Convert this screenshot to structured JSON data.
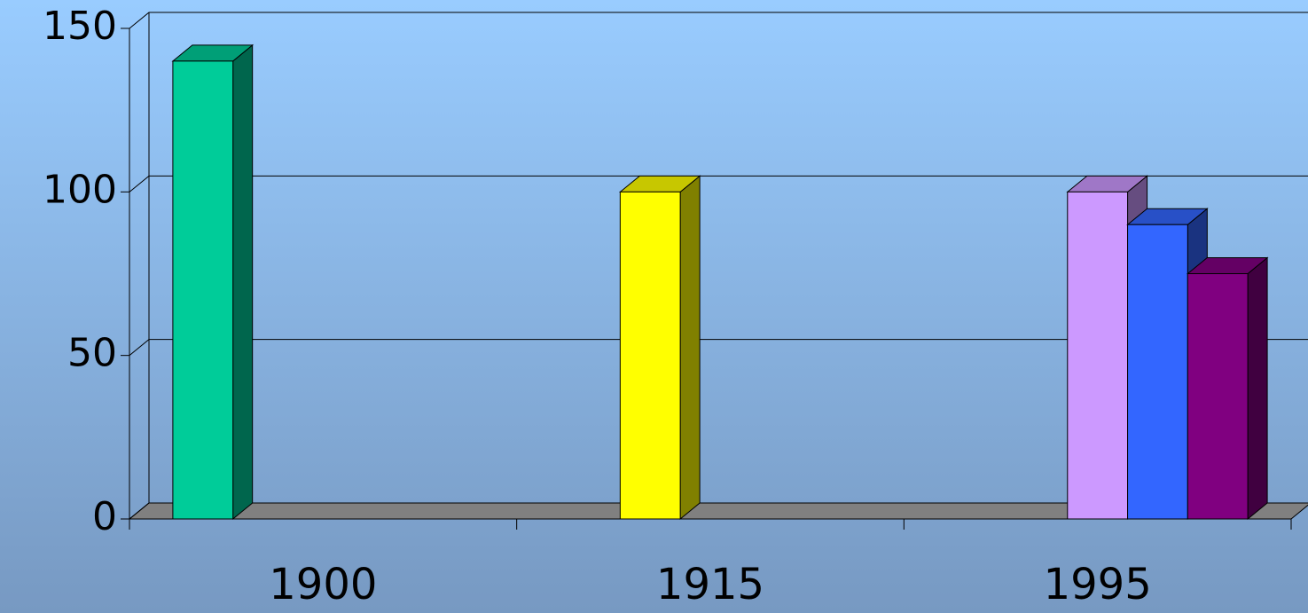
{
  "chart_data": {
    "type": "bar3d",
    "categories": [
      "1900",
      "1915",
      "1995"
    ],
    "series": [
      {
        "color": "#00cc99",
        "values": [
          140,
          null,
          null
        ]
      },
      {
        "color": "#ffff00",
        "values": [
          null,
          100,
          null
        ]
      },
      {
        "color": "#cc99ff",
        "values": [
          null,
          null,
          100
        ]
      },
      {
        "color": "#3366ff",
        "values": [
          null,
          null,
          90
        ]
      },
      {
        "color": "#800080",
        "values": [
          null,
          null,
          75
        ]
      }
    ],
    "ylim": [
      0,
      150
    ],
    "yticks": [
      0,
      50,
      100,
      150
    ],
    "grid": true,
    "floor_color": "#808080"
  }
}
